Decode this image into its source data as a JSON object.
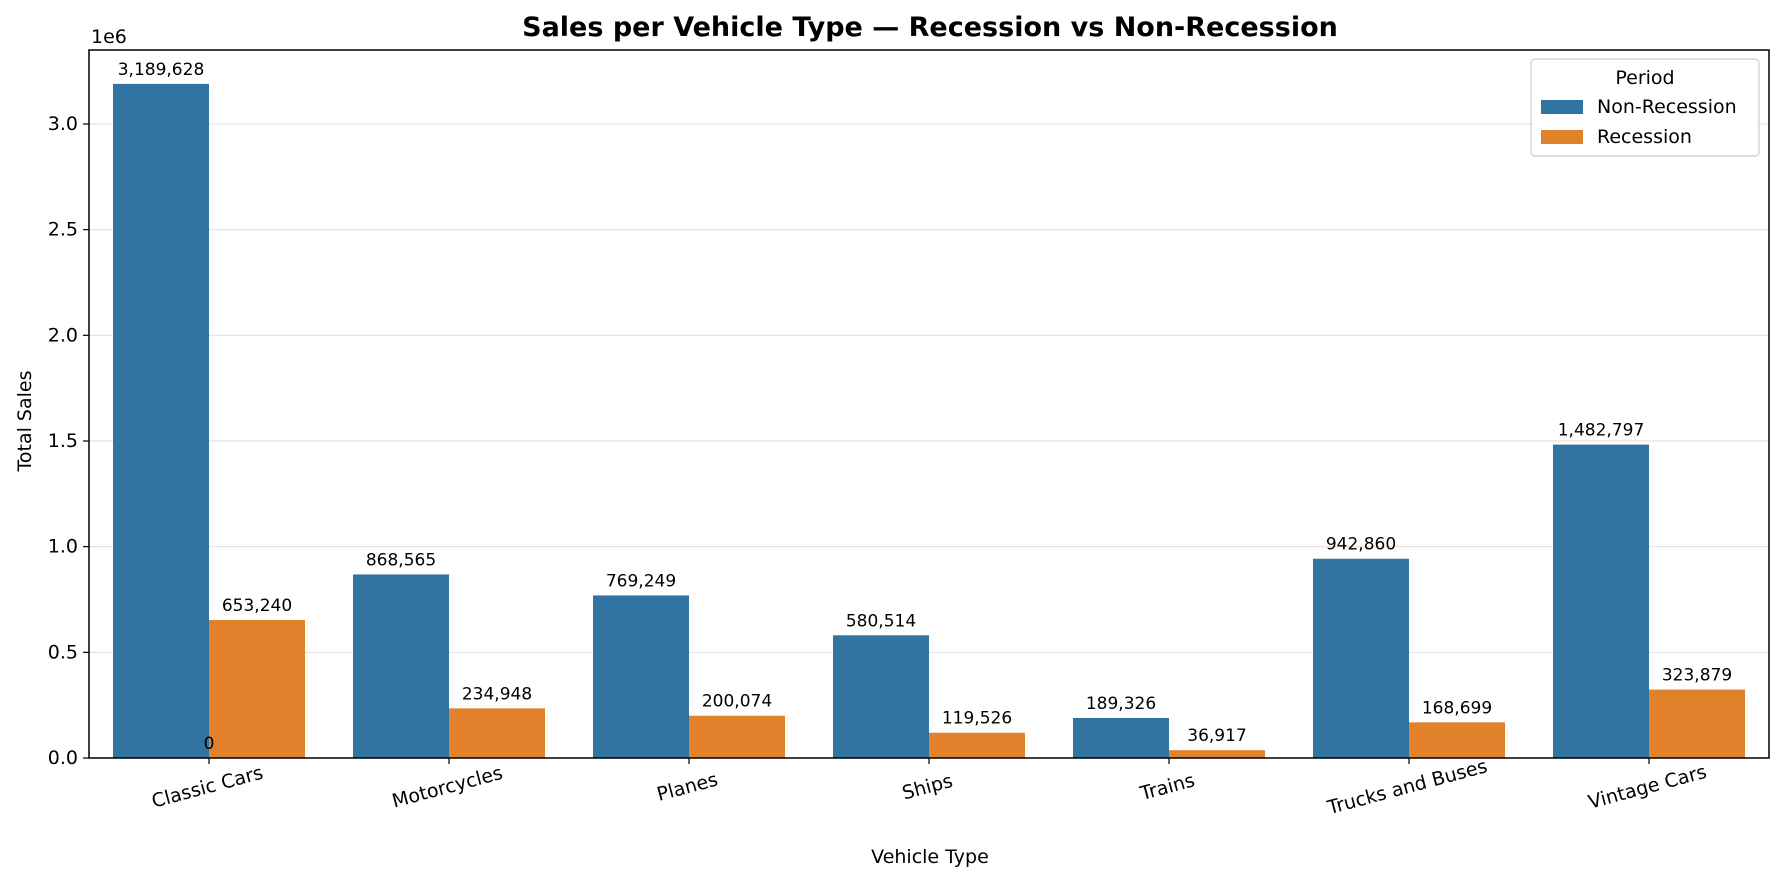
{
  "chart_data": {
    "type": "bar",
    "title": "Sales per Vehicle Type — Recession vs Non-Recession",
    "xlabel": "Vehicle Type",
    "ylabel": "Total Sales",
    "y_offset_label": "1e6",
    "ylim": [
      0,
      3350000
    ],
    "yticks": [
      0,
      500000,
      1000000,
      1500000,
      2000000,
      2500000,
      3000000
    ],
    "ytick_labels": [
      "0.0",
      "0.5",
      "1.0",
      "1.5",
      "2.0",
      "2.5",
      "3.0"
    ],
    "grid": "y",
    "categories": [
      "Classic Cars",
      "Motorcycles",
      "Planes",
      "Ships",
      "Trains",
      "Trucks and Buses",
      "Vintage Cars"
    ],
    "series": [
      {
        "name": "Non-Recession",
        "color": "#3274a1",
        "values": [
          3189628,
          868565,
          769249,
          580514,
          189326,
          942860,
          1482797
        ],
        "labels": [
          "3,189,628",
          "868,565",
          "769,249",
          "580,514",
          "189,326",
          "942,860",
          "1,482,797"
        ]
      },
      {
        "name": "Recession",
        "color": "#e1812c",
        "values": [
          653240,
          234948,
          200074,
          119526,
          36917,
          168699,
          323879
        ],
        "labels": [
          "653,240",
          "234,948",
          "200,074",
          "119,526",
          "36,917",
          "168,699",
          "323,879"
        ]
      }
    ],
    "extra_annotation": "0",
    "legend": {
      "title": "Period",
      "placement": "top-right"
    }
  }
}
